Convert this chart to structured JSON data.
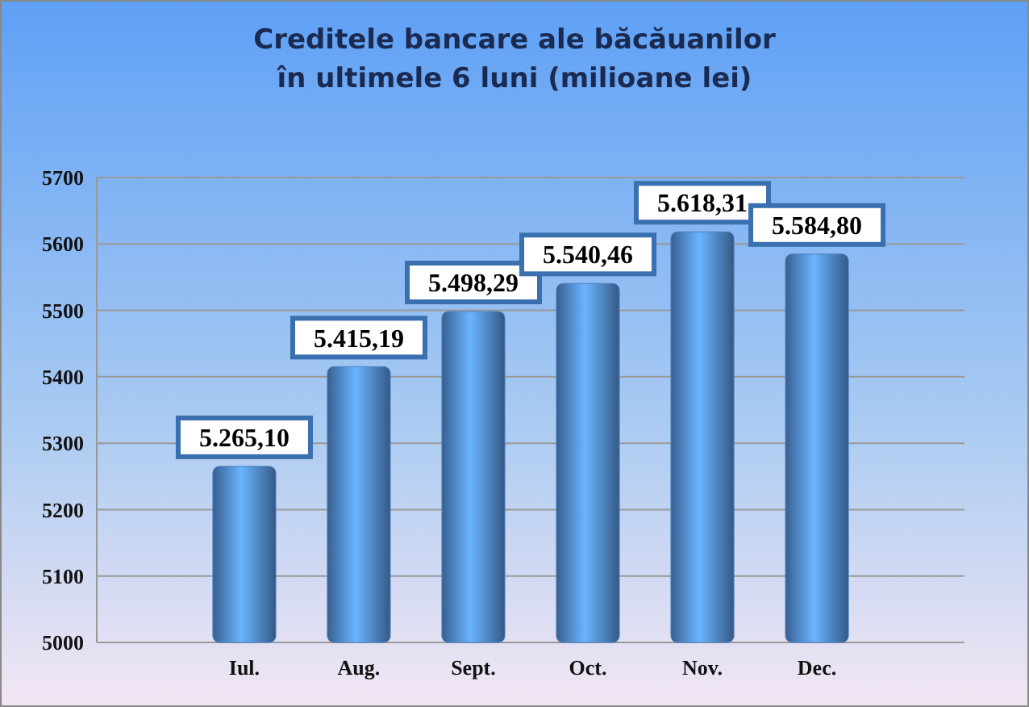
{
  "chart_data": {
    "type": "bar",
    "title": "Creditele bancare ale băcăuanilor\nîn ultimele 6 luni (milioane lei)",
    "categories": [
      "Iul.",
      "Aug.",
      "Sept.",
      "Oct.",
      "Nov.",
      "Dec."
    ],
    "values": [
      5265.1,
      5415.19,
      5498.29,
      5540.46,
      5618.31,
      5584.8
    ],
    "value_labels": [
      "5.265,10",
      "5.415,19",
      "5.498,29",
      "5.540,46",
      "5.618,31",
      "5.584,80"
    ],
    "color": "#4a7fc0",
    "ylim": [
      5000,
      5700
    ],
    "yticks": [
      5000,
      5100,
      5200,
      5300,
      5400,
      5500,
      5600,
      5700
    ],
    "grid": "y"
  }
}
